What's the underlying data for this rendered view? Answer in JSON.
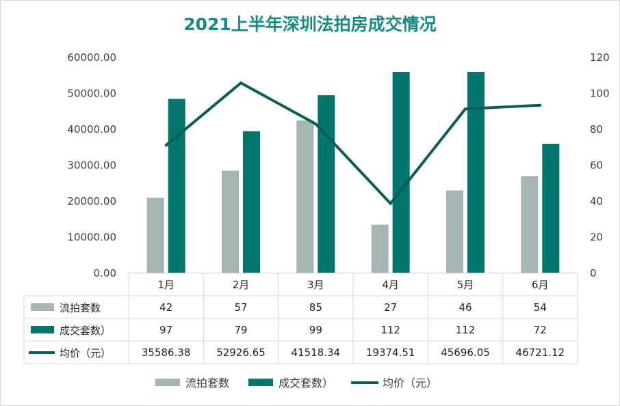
{
  "chart_data": {
    "type": "bar",
    "title": "2021上半年深圳法拍房成交情况",
    "categories": [
      "1月",
      "2月",
      "3月",
      "4月",
      "5月",
      "6月"
    ],
    "series": [
      {
        "name": "流拍套数",
        "kind": "bar",
        "axis": "right",
        "color": "#a5b5b2",
        "values": [
          42,
          57,
          85,
          27,
          46,
          54
        ]
      },
      {
        "name": "成交套数）",
        "kind": "bar",
        "axis": "right",
        "color": "#00766c",
        "values": [
          97,
          79,
          99,
          112,
          112,
          72
        ]
      },
      {
        "name": "均价（元）",
        "kind": "line",
        "axis": "left",
        "color": "#0b5e56",
        "values": [
          35586.38,
          52926.65,
          41518.34,
          19374.51,
          45696.05,
          46721.12
        ],
        "labels": [
          "35586.38",
          "52926.65",
          "41518.34",
          "19374.51",
          "45696.05",
          "46721.12"
        ]
      }
    ],
    "y_left": {
      "ylim": [
        0,
        60000
      ],
      "ticks": [
        "0.00",
        "10000.00",
        "20000.00",
        "30000.00",
        "40000.00",
        "50000.00",
        "60000.00"
      ]
    },
    "y_right": {
      "ylim": [
        0,
        120
      ],
      "ticks": [
        "0",
        "20",
        "40",
        "60",
        "80",
        "100",
        "120"
      ]
    },
    "data_table": true,
    "grid": false,
    "legend_position": "bottom"
  }
}
